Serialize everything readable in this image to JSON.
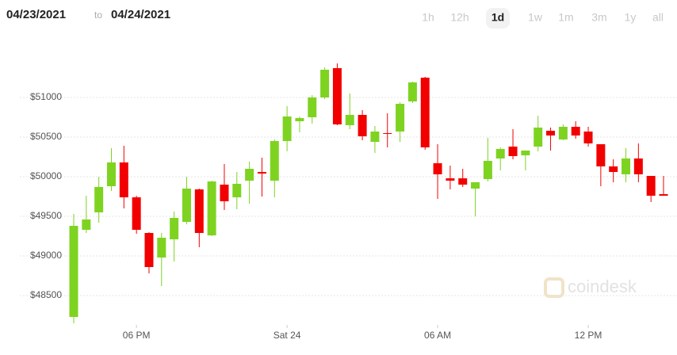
{
  "header": {
    "from": "04/23/2021",
    "to_word": "to",
    "to": "04/24/2021",
    "ranges": [
      "1h",
      "12h",
      "1d",
      "1w",
      "1m",
      "3m",
      "1y",
      "all"
    ],
    "active_range": "1d"
  },
  "watermark": "coindesk",
  "chart_data": {
    "type": "candlestick",
    "up_color": "#7ed321",
    "down_color": "#f20000",
    "grid": true,
    "categories": [
      null,
      null,
      null,
      null,
      null,
      "06 PM",
      null,
      null,
      null,
      null,
      null,
      null,
      null,
      null,
      null,
      null,
      null,
      "Sat 24",
      null,
      null,
      null,
      null,
      null,
      null,
      null,
      null,
      null,
      null,
      null,
      "06 AM",
      null,
      null,
      null,
      null,
      null,
      null,
      null,
      null,
      null,
      null,
      null,
      "12 PM",
      null,
      null,
      null,
      null,
      null,
      null
    ],
    "open": [
      48230,
      49330,
      49550,
      49880,
      50180,
      49740,
      49290,
      48980,
      49210,
      49430,
      49840,
      49260,
      49900,
      49740,
      49950,
      50060,
      49950,
      50450,
      50700,
      50750,
      51000,
      51370,
      50650,
      50780,
      50440,
      50550,
      50570,
      50950,
      51250,
      50170,
      49980,
      49980,
      49850,
      49970,
      50230,
      50380,
      50270,
      50380,
      50580,
      50470,
      50630,
      50570,
      50410,
      50130,
      50030,
      50230,
      50010,
      49780
    ],
    "high": [
      49530,
      49760,
      50000,
      50360,
      50390,
      49760,
      49300,
      49290,
      49560,
      50000,
      49850,
      49950,
      50160,
      50060,
      50190,
      50240,
      50470,
      50890,
      50760,
      51030,
      51380,
      51430,
      51050,
      50840,
      50640,
      50800,
      50940,
      51200,
      51260,
      50410,
      50140,
      50100,
      49930,
      50490,
      50370,
      50600,
      50330,
      50770,
      50620,
      50660,
      50700,
      50630,
      50410,
      50220,
      50360,
      50420,
      50010,
      50010
    ],
    "low": [
      48150,
      49290,
      49420,
      49820,
      49600,
      49280,
      48780,
      48620,
      48930,
      49400,
      49110,
      49250,
      49580,
      49590,
      49660,
      49750,
      49740,
      50320,
      50560,
      50670,
      50980,
      50650,
      50600,
      50460,
      50300,
      50370,
      50440,
      50930,
      50340,
      49720,
      49840,
      49870,
      49500,
      49940,
      50080,
      50220,
      50080,
      50320,
      50330,
      50460,
      50480,
      50380,
      49880,
      49930,
      49930,
      49930,
      49680,
      49760
    ],
    "close": [
      49380,
      49460,
      49870,
      50180,
      49740,
      49330,
      48860,
      49230,
      49480,
      49850,
      49290,
      49940,
      49690,
      49910,
      50100,
      50040,
      50450,
      50760,
      50740,
      51000,
      51350,
      50660,
      50780,
      50510,
      50570,
      50540,
      50920,
      51190,
      50370,
      50030,
      49950,
      49900,
      49930,
      50200,
      50350,
      50260,
      50330,
      50620,
      50520,
      50630,
      50520,
      50420,
      50130,
      50060,
      50230,
      50030,
      49760,
      49760
    ],
    "ylim": [
      48150,
      51750
    ],
    "yticks": [
      {
        "value": 48500,
        "label": "$48500"
      },
      {
        "value": 49000,
        "label": "$49000"
      },
      {
        "value": 49500,
        "label": "$49500"
      },
      {
        "value": 50000,
        "label": "$50000"
      },
      {
        "value": 50500,
        "label": "$50500"
      },
      {
        "value": 51000,
        "label": "$51000"
      }
    ]
  }
}
